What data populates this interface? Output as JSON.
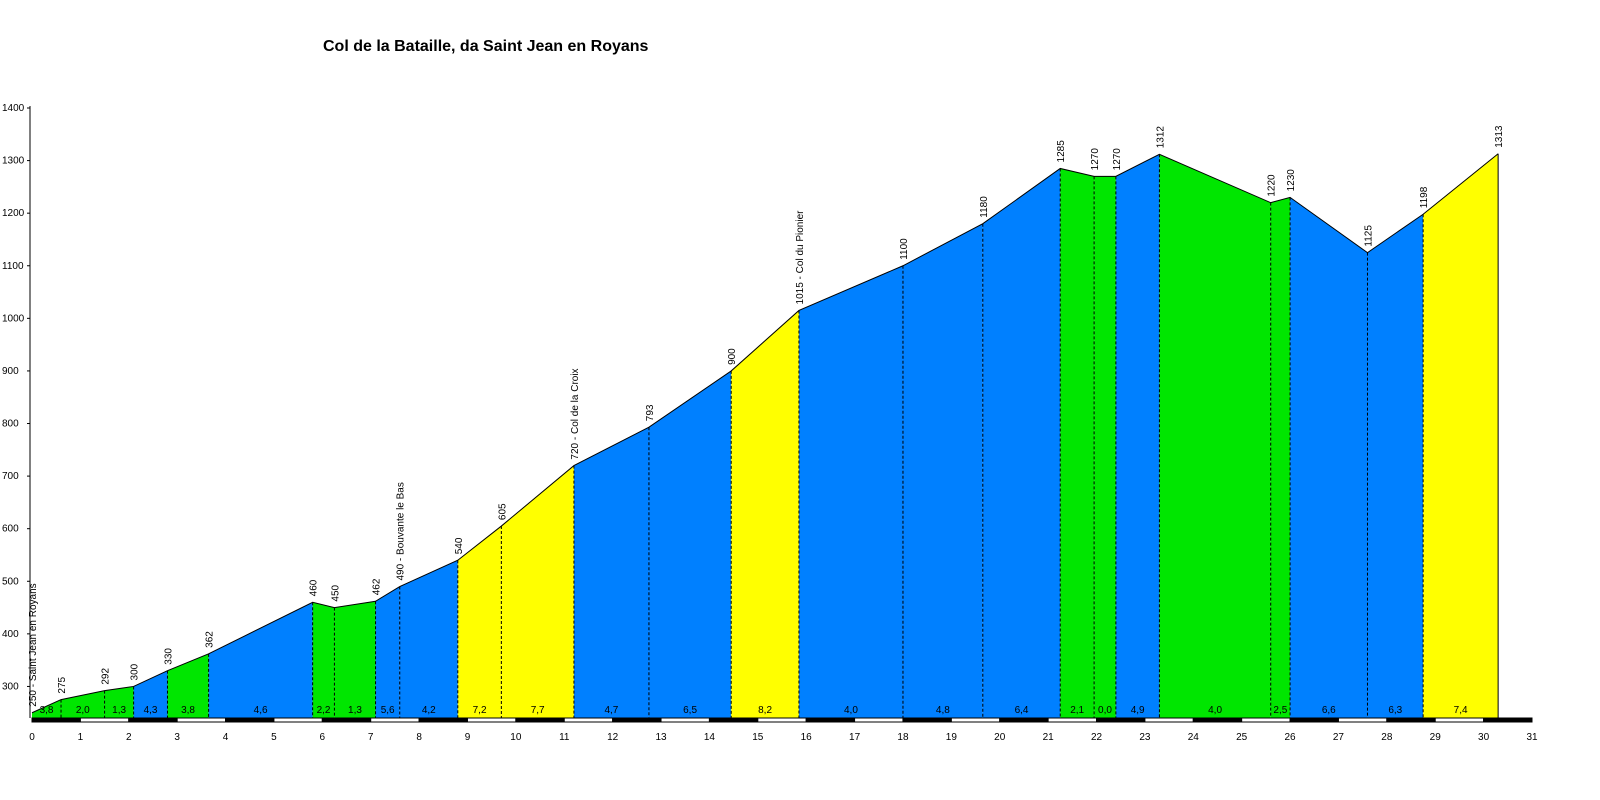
{
  "title": "Col de la Bataille, da Saint Jean en Royans",
  "chart_data": {
    "type": "area",
    "title": "Col de la Bataille, da Saint Jean en Royans",
    "xlabel": "",
    "ylabel": "",
    "xlim": [
      0,
      31
    ],
    "ylim": [
      240,
      1400
    ],
    "y_ticks": [
      300,
      400,
      500,
      600,
      700,
      800,
      900,
      1000,
      1100,
      1200,
      1300,
      1400
    ],
    "x_ticks": [
      0,
      1,
      2,
      3,
      4,
      5,
      6,
      7,
      8,
      9,
      10,
      11,
      12,
      13,
      14,
      15,
      16,
      17,
      18,
      19,
      20,
      21,
      22,
      23,
      24,
      25,
      26,
      27,
      28,
      29,
      30,
      31
    ],
    "colors": {
      "blue": "#0080ff",
      "green": "#00e600",
      "yellow": "#ffff00",
      "axis": "#000000"
    },
    "profile_points": [
      {
        "x": 0.0,
        "y": 250,
        "label": "250 - Saint Jean en Royans"
      },
      {
        "x": 0.6,
        "y": 275,
        "label": "275"
      },
      {
        "x": 1.5,
        "y": 292,
        "label": "292"
      },
      {
        "x": 2.1,
        "y": 300,
        "label": "300"
      },
      {
        "x": 2.8,
        "y": 330,
        "label": "330"
      },
      {
        "x": 3.65,
        "y": 362,
        "label": "362"
      },
      {
        "x": 5.8,
        "y": 460,
        "label": "460"
      },
      {
        "x": 6.25,
        "y": 450,
        "label": "450"
      },
      {
        "x": 7.1,
        "y": 462,
        "label": "462"
      },
      {
        "x": 7.6,
        "y": 490,
        "label": "490 - Bouvante le Bas"
      },
      {
        "x": 8.8,
        "y": 540,
        "label": "540"
      },
      {
        "x": 9.7,
        "y": 605,
        "label": "605"
      },
      {
        "x": 11.2,
        "y": 720,
        "label": "720 - Col de la Croix"
      },
      {
        "x": 12.75,
        "y": 793,
        "label": "793"
      },
      {
        "x": 14.45,
        "y": 900,
        "label": "900"
      },
      {
        "x": 15.85,
        "y": 1015,
        "label": "1015 - Col du Pionier"
      },
      {
        "x": 18.0,
        "y": 1100,
        "label": "1100"
      },
      {
        "x": 19.65,
        "y": 1180,
        "label": "1180"
      },
      {
        "x": 21.25,
        "y": 1285,
        "label": "1285"
      },
      {
        "x": 21.95,
        "y": 1270,
        "label": "1270"
      },
      {
        "x": 22.4,
        "y": 1270,
        "label": "1270"
      },
      {
        "x": 23.3,
        "y": 1312,
        "label": "1312"
      },
      {
        "x": 25.6,
        "y": 1220,
        "label": "1220"
      },
      {
        "x": 26.0,
        "y": 1230,
        "label": "1230"
      },
      {
        "x": 27.6,
        "y": 1125,
        "label": "1125"
      },
      {
        "x": 28.75,
        "y": 1198,
        "label": "1198"
      },
      {
        "x": 30.3,
        "y": 1313,
        "label": "1313"
      }
    ],
    "segments": [
      {
        "from": 0.0,
        "to": 0.6,
        "gradient": "3,8",
        "color": "green"
      },
      {
        "from": 0.6,
        "to": 1.5,
        "gradient": "2,0",
        "color": "green"
      },
      {
        "from": 1.5,
        "to": 2.1,
        "gradient": "1,3",
        "color": "green"
      },
      {
        "from": 2.1,
        "to": 2.8,
        "gradient": "4,3",
        "color": "blue"
      },
      {
        "from": 2.8,
        "to": 3.65,
        "gradient": "3,8",
        "color": "green"
      },
      {
        "from": 3.65,
        "to": 5.8,
        "gradient": "4,6",
        "color": "blue"
      },
      {
        "from": 5.8,
        "to": 6.25,
        "gradient": "2,2",
        "color": "green"
      },
      {
        "from": 6.25,
        "to": 7.1,
        "gradient": "1,3",
        "color": "green"
      },
      {
        "from": 7.1,
        "to": 7.6,
        "gradient": "5,6",
        "color": "blue"
      },
      {
        "from": 7.6,
        "to": 8.8,
        "gradient": "4,2",
        "color": "blue"
      },
      {
        "from": 8.8,
        "to": 9.7,
        "gradient": "7,2",
        "color": "yellow"
      },
      {
        "from": 9.7,
        "to": 11.2,
        "gradient": "7,7",
        "color": "yellow"
      },
      {
        "from": 11.2,
        "to": 12.75,
        "gradient": "4,7",
        "color": "blue"
      },
      {
        "from": 12.75,
        "to": 14.45,
        "gradient": "6,5",
        "color": "blue"
      },
      {
        "from": 14.45,
        "to": 15.85,
        "gradient": "8,2",
        "color": "yellow"
      },
      {
        "from": 15.85,
        "to": 18.0,
        "gradient": "4,0",
        "color": "blue"
      },
      {
        "from": 18.0,
        "to": 19.65,
        "gradient": "4,8",
        "color": "blue"
      },
      {
        "from": 19.65,
        "to": 21.25,
        "gradient": "6,4",
        "color": "blue"
      },
      {
        "from": 21.25,
        "to": 21.95,
        "gradient": "2,1",
        "color": "green"
      },
      {
        "from": 21.95,
        "to": 22.4,
        "gradient": "0,0",
        "color": "green"
      },
      {
        "from": 22.4,
        "to": 23.3,
        "gradient": "4,9",
        "color": "blue"
      },
      {
        "from": 23.3,
        "to": 25.6,
        "gradient": "4,0",
        "color": "green"
      },
      {
        "from": 25.6,
        "to": 26.0,
        "gradient": "2,5",
        "color": "green"
      },
      {
        "from": 26.0,
        "to": 27.6,
        "gradient": "6,6",
        "color": "blue"
      },
      {
        "from": 27.6,
        "to": 28.75,
        "gradient": "6,3",
        "color": "blue"
      },
      {
        "from": 28.75,
        "to": 30.3,
        "gradient": "7,4",
        "color": "yellow"
      }
    ]
  }
}
